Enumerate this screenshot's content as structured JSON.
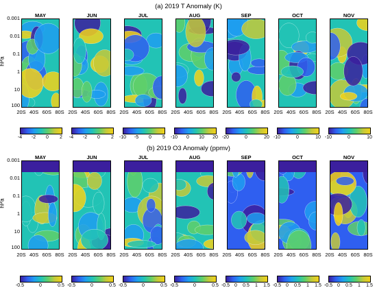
{
  "chart_data": [
    {
      "type": "heatmap",
      "title": "(a) 2019 T Anomaly (K)",
      "ylabel": "hPa",
      "yticks": [
        "0.001",
        "0.01",
        "0.1",
        "1",
        "10",
        "100"
      ],
      "xticks": [
        "20S",
        "40S",
        "60S",
        "80S"
      ],
      "panels": [
        {
          "month": "MAY",
          "colorbar_ticks": [
            "-4",
            "-2",
            "0",
            "2"
          ]
        },
        {
          "month": "JUN",
          "colorbar_ticks": [
            "-4",
            "-2",
            "0",
            "2"
          ]
        },
        {
          "month": "JUL",
          "colorbar_ticks": [
            "-10",
            "-5",
            "0",
            "5"
          ]
        },
        {
          "month": "AUG",
          "colorbar_ticks": [
            "-10",
            "0",
            "10",
            "20"
          ]
        },
        {
          "month": "SEP",
          "colorbar_ticks": [
            "-20",
            "0",
            "20"
          ]
        },
        {
          "month": "OCT",
          "colorbar_ticks": [
            "-10",
            "0",
            "10"
          ]
        },
        {
          "month": "NOV",
          "colorbar_ticks": [
            "-10",
            "0",
            "10"
          ]
        }
      ]
    },
    {
      "type": "heatmap",
      "title": "(b) 2019 O3 Anomaly (ppmv)",
      "ylabel": "hPa",
      "yticks": [
        "0.001",
        "0.01",
        "0.1",
        "1",
        "10",
        "100"
      ],
      "xticks": [
        "20S",
        "40S",
        "60S",
        "80S"
      ],
      "panels": [
        {
          "month": "MAY",
          "colorbar_ticks": [
            "-0.5",
            "0",
            "0.5"
          ]
        },
        {
          "month": "JUN",
          "colorbar_ticks": [
            "-0.5",
            "0",
            "0.5"
          ]
        },
        {
          "month": "JUL",
          "colorbar_ticks": [
            "-0.5",
            "0",
            "0.5"
          ]
        },
        {
          "month": "AUG",
          "colorbar_ticks": [
            "-0.5",
            "0",
            "0.5"
          ]
        },
        {
          "month": "SEP",
          "colorbar_ticks": [
            "-0.5",
            "0",
            "0.5",
            "1",
            "1.5"
          ]
        },
        {
          "month": "OCT",
          "colorbar_ticks": [
            "-0.5",
            "0",
            "0.5",
            "1",
            "1.5"
          ]
        },
        {
          "month": "NOV",
          "colorbar_ticks": [
            "-0.5",
            "0",
            "0.5",
            "1",
            "1.5"
          ]
        }
      ]
    }
  ],
  "colormap": [
    "#3b1f9e",
    "#2f5ff0",
    "#1f9ef0",
    "#22c3b5",
    "#5fcf6a",
    "#c4c93a",
    "#f2d21a"
  ]
}
